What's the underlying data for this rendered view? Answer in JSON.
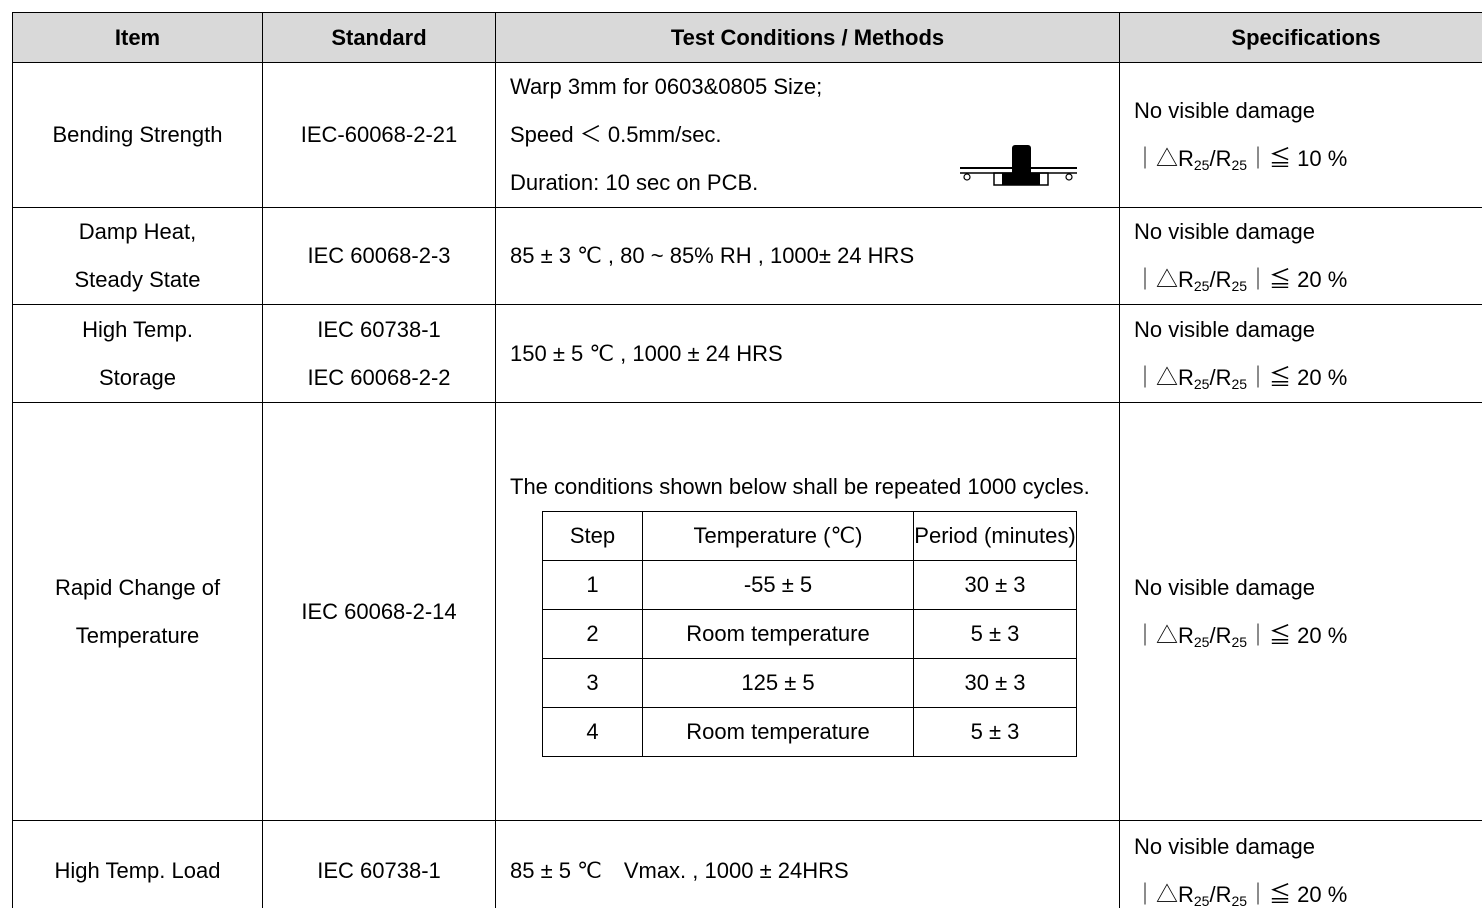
{
  "table": {
    "headers": [
      "Item",
      "Standard",
      "Test Conditions / Methods",
      "Specifications"
    ],
    "rows": [
      {
        "item": [
          "Bending Strength"
        ],
        "standard": [
          "IEC-60068-2-21"
        ],
        "conditions": [
          "Warp 3mm for 0603&0805 Size;",
          "Speed ＜ 0.5mm/sec.",
          "Duration: 10 sec on PCB."
        ],
        "spec": {
          "text": "No visible damage",
          "delta": {
            "pre": "｜△R",
            "sub1": "25",
            "mid": "/R",
            "sub2": "25",
            "post": "｜≦  10 %"
          }
        }
      },
      {
        "item": [
          "Damp Heat,",
          "Steady State"
        ],
        "standard": [
          "IEC 60068-2-3"
        ],
        "conditions": [
          "85 ± 3 ℃ , 80 ~ 85% RH , 1000± 24 HRS"
        ],
        "spec": {
          "text": "No visible damage",
          "delta": {
            "pre": "｜△R",
            "sub1": "25",
            "mid": "/R",
            "sub2": "25",
            "post": "｜≦ 20 %"
          }
        }
      },
      {
        "item": [
          "High Temp.",
          "Storage"
        ],
        "standard": [
          "IEC 60738-1",
          "IEC 60068-2-2"
        ],
        "conditions": [
          "150 ± 5 ℃ , 1000 ± 24 HRS"
        ],
        "spec": {
          "text": "No visible damage",
          "delta": {
            "pre": "｜△R",
            "sub1": "25",
            "mid": "/R",
            "sub2": "25",
            "post": "｜≦ 20 %"
          }
        }
      },
      {
        "item": [
          "Rapid Change of",
          "Temperature"
        ],
        "standard": [
          "IEC 60068-2-14"
        ],
        "conditions": [
          "The conditions shown below shall be repeated 1000 cycles."
        ],
        "subtable": {
          "headers": [
            "Step",
            "Temperature (℃)",
            "Period (minutes)"
          ],
          "rows": [
            [
              "1",
              "-55 ± 5",
              "30 ± 3"
            ],
            [
              "2",
              "Room temperature",
              "5 ± 3"
            ],
            [
              "3",
              "125 ± 5",
              "30 ± 3"
            ],
            [
              "4",
              "Room temperature",
              "5 ± 3"
            ]
          ]
        },
        "spec": {
          "text": "No visible damage",
          "delta": {
            "pre": "｜△R",
            "sub1": "25",
            "mid": "/R",
            "sub2": "25",
            "post": "｜≦ 20 %"
          }
        }
      },
      {
        "item": [
          "High Temp. Load"
        ],
        "standard": [
          "IEC 60738-1"
        ],
        "conditions": [
          "85 ± 5 ℃　Vmax. , 1000 ± 24HRS"
        ],
        "spec": {
          "text": "No visible damage",
          "delta": {
            "pre": "｜△R",
            "sub1": "25",
            "mid": "/R",
            "sub2": "25",
            "post": "｜≦ 20 %"
          }
        }
      }
    ]
  }
}
